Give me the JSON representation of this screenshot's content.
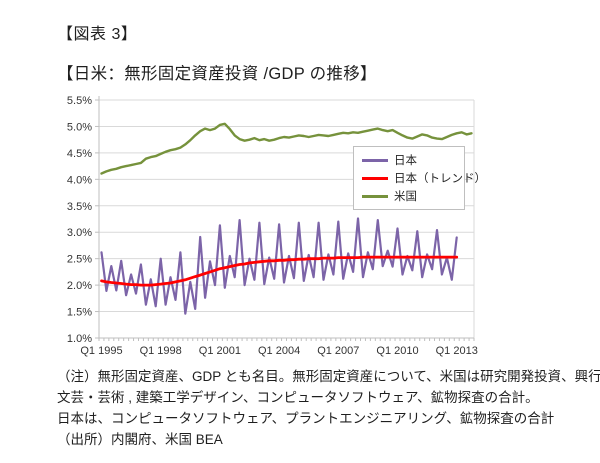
{
  "page": {
    "figure_label": "【図表 3】",
    "title": "【日米：無形固定資産投資 /GDP の推移】"
  },
  "notes": {
    "line1": "（注）無形固定資産、GDP とも名目。無形固定資産について、米国は研究開発投資、興行、",
    "line2": "文芸・芸術 , 建築工学デザイン、コンピュータソフトウェア、鉱物探査の合計。",
    "line3": "日本は、コンピュータソフトウェア、プラントエンジニアリング、鉱物探査の合計",
    "line4": "（出所）内閣府、米国 BEA"
  },
  "colors": {
    "japan": "#7C64A8",
    "japan_trend": "#FF0000",
    "us": "#76923C",
    "gridline": "#D9D9D9",
    "axis": "#BFBFBF",
    "tick_text": "#333333"
  },
  "chart_data": {
    "type": "line",
    "title": "",
    "xlabel": "",
    "ylabel": "",
    "x_frequency": "quarterly",
    "x_start": "Q1 1995",
    "n_categories": 76,
    "ylim": [
      1.0,
      5.5
    ],
    "y_tick_step": 0.5,
    "y_tick_labels": [
      "1.0%",
      "1.5%",
      "2.0%",
      "2.5%",
      "3.0%",
      "3.5%",
      "4.0%",
      "4.5%",
      "5.0%",
      "5.5%"
    ],
    "x_tick_labels": [
      "Q1 1995",
      "Q1 1998",
      "Q1 2001",
      "Q1 2004",
      "Q1 2007",
      "Q1 2010",
      "Q1 2013"
    ],
    "x_tick_positions": [
      0,
      12,
      24,
      36,
      48,
      60,
      72
    ],
    "grid": true,
    "legend_position": "inside-upper-right",
    "series": [
      {
        "name": "日本",
        "color": "#7C64A8",
        "values": [
          2.62,
          1.89,
          2.36,
          1.9,
          2.46,
          1.81,
          2.2,
          1.84,
          2.39,
          1.63,
          2.11,
          1.6,
          2.5,
          1.63,
          2.15,
          1.72,
          2.62,
          1.46,
          2.06,
          1.55,
          2.91,
          1.76,
          2.45,
          2.0,
          3.13,
          1.95,
          2.55,
          2.15,
          3.23,
          2.0,
          2.5,
          2.1,
          3.18,
          2.02,
          2.52,
          2.12,
          3.15,
          2.05,
          2.55,
          2.13,
          3.18,
          2.08,
          2.57,
          2.15,
          3.18,
          2.1,
          2.58,
          2.2,
          3.2,
          2.12,
          2.6,
          2.25,
          3.26,
          2.15,
          2.62,
          2.3,
          3.23,
          2.36,
          2.65,
          2.35,
          3.07,
          2.2,
          2.55,
          2.28,
          3.02,
          2.15,
          2.58,
          2.3,
          3.04,
          2.2,
          2.52,
          2.1,
          2.9
        ]
      },
      {
        "name": "日本（トレンド）",
        "color": "#FF0000",
        "values": [
          2.08,
          2.06,
          2.05,
          2.04,
          2.03,
          2.02,
          2.01,
          2.01,
          2.0,
          2.0,
          2.0,
          2.01,
          2.02,
          2.03,
          2.04,
          2.06,
          2.08,
          2.1,
          2.13,
          2.16,
          2.19,
          2.22,
          2.25,
          2.28,
          2.31,
          2.33,
          2.35,
          2.37,
          2.39,
          2.4,
          2.42,
          2.43,
          2.44,
          2.45,
          2.46,
          2.46,
          2.47,
          2.47,
          2.48,
          2.48,
          2.49,
          2.49,
          2.5,
          2.5,
          2.5,
          2.51,
          2.51,
          2.51,
          2.52,
          2.52,
          2.52,
          2.52,
          2.52,
          2.53,
          2.53,
          2.53,
          2.53,
          2.53,
          2.53,
          2.53,
          2.53,
          2.53,
          2.53,
          2.53,
          2.53,
          2.53,
          2.53,
          2.53,
          2.53,
          2.53,
          2.53,
          2.53,
          2.53
        ]
      },
      {
        "name": "米国",
        "color": "#76923C",
        "values": [
          4.11,
          4.15,
          4.18,
          4.2,
          4.23,
          4.25,
          4.27,
          4.29,
          4.31,
          4.39,
          4.42,
          4.44,
          4.48,
          4.52,
          4.55,
          4.57,
          4.6,
          4.66,
          4.74,
          4.83,
          4.91,
          4.96,
          4.93,
          4.96,
          5.03,
          5.05,
          4.95,
          4.83,
          4.76,
          4.73,
          4.75,
          4.78,
          4.74,
          4.76,
          4.73,
          4.75,
          4.78,
          4.8,
          4.79,
          4.81,
          4.83,
          4.82,
          4.8,
          4.82,
          4.84,
          4.83,
          4.82,
          4.84,
          4.86,
          4.88,
          4.87,
          4.89,
          4.88,
          4.9,
          4.92,
          4.94,
          4.96,
          4.93,
          4.91,
          4.93,
          4.88,
          4.83,
          4.79,
          4.77,
          4.81,
          4.85,
          4.83,
          4.79,
          4.77,
          4.76,
          4.8,
          4.84,
          4.87,
          4.89,
          4.85,
          4.87
        ]
      }
    ]
  }
}
